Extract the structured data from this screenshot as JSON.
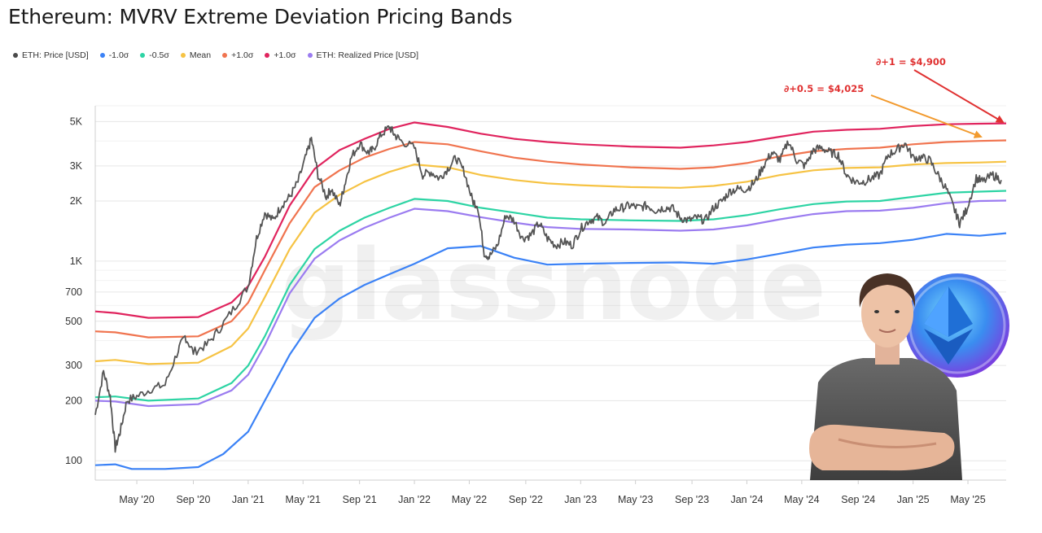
{
  "page": {
    "title": "Ethereum: MVRV Extreme Deviation Pricing Bands"
  },
  "legend": [
    {
      "label": "ETH: Price [USD]",
      "color": "#4a4a4a"
    },
    {
      "label": "-1.0σ",
      "color": "#3b82f6"
    },
    {
      "label": "-0.5σ",
      "color": "#2dd4a4"
    },
    {
      "label": "Mean",
      "color": "#f6c344"
    },
    {
      "label": "+1.0σ",
      "color": "#f0744f"
    },
    {
      "label": "+1.0σ",
      "color": "#e0245e"
    },
    {
      "label": "ETH: Realized Price [USD]",
      "color": "#9b7cf0"
    }
  ],
  "watermark": "glassnode",
  "chart_data": {
    "type": "line",
    "title": "Ethereum: MVRV Extreme Deviation Pricing Bands",
    "yscale": "log",
    "ylim": [
      80,
      6000
    ],
    "yticks": [
      {
        "value": 100,
        "label": "100"
      },
      {
        "value": 200,
        "label": "200"
      },
      {
        "value": 300,
        "label": "300"
      },
      {
        "value": 500,
        "label": "500"
      },
      {
        "value": 700,
        "label": "700"
      },
      {
        "value": 1000,
        "label": "1K"
      },
      {
        "value": 2000,
        "label": "2K"
      },
      {
        "value": 3000,
        "label": "3K"
      },
      {
        "value": 5000,
        "label": "5K"
      }
    ],
    "xlim": [
      2020.08,
      2025.56
    ],
    "xticks": [
      {
        "value": 2020.33,
        "label": "May '20"
      },
      {
        "value": 2020.67,
        "label": "Sep '20"
      },
      {
        "value": 2021.0,
        "label": "Jan '21"
      },
      {
        "value": 2021.33,
        "label": "May '21"
      },
      {
        "value": 2021.67,
        "label": "Sep '21"
      },
      {
        "value": 2022.0,
        "label": "Jan '22"
      },
      {
        "value": 2022.33,
        "label": "May '22"
      },
      {
        "value": 2022.67,
        "label": "Sep '22"
      },
      {
        "value": 2023.0,
        "label": "Jan '23"
      },
      {
        "value": 2023.33,
        "label": "May '23"
      },
      {
        "value": 2023.67,
        "label": "Sep '23"
      },
      {
        "value": 2024.0,
        "label": "Jan '24"
      },
      {
        "value": 2024.33,
        "label": "May '24"
      },
      {
        "value": 2024.67,
        "label": "Sep '24"
      },
      {
        "value": 2025.0,
        "label": "Jan '25"
      },
      {
        "value": 2025.33,
        "label": "May '25"
      }
    ],
    "series": [
      {
        "name": "+1.0σ",
        "color": "#e0245e",
        "x": [
          2020.08,
          2020.2,
          2020.4,
          2020.7,
          2020.9,
          2021.0,
          2021.1,
          2021.25,
          2021.4,
          2021.55,
          2021.7,
          2021.85,
          2022.0,
          2022.2,
          2022.4,
          2022.6,
          2022.8,
          2023.0,
          2023.3,
          2023.6,
          2023.8,
          2024.0,
          2024.2,
          2024.4,
          2024.6,
          2024.8,
          2025.0,
          2025.2,
          2025.4,
          2025.56
        ],
        "y": [
          560,
          550,
          520,
          525,
          620,
          750,
          1050,
          1900,
          2900,
          3600,
          4100,
          4600,
          4950,
          4700,
          4350,
          4100,
          3950,
          3850,
          3750,
          3700,
          3800,
          3950,
          4200,
          4450,
          4550,
          4600,
          4750,
          4850,
          4880,
          4900
        ]
      },
      {
        "name": "+1.0σ",
        "color": "#f0744f",
        "x": [
          2020.08,
          2020.2,
          2020.4,
          2020.7,
          2020.9,
          2021.0,
          2021.1,
          2021.25,
          2021.4,
          2021.55,
          2021.7,
          2021.85,
          2022.0,
          2022.2,
          2022.4,
          2022.6,
          2022.8,
          2023.0,
          2023.3,
          2023.6,
          2023.8,
          2024.0,
          2024.2,
          2024.4,
          2024.6,
          2024.8,
          2025.0,
          2025.2,
          2025.4,
          2025.56
        ],
        "y": [
          445,
          440,
          415,
          420,
          500,
          620,
          900,
          1550,
          2350,
          2850,
          3300,
          3650,
          3950,
          3850,
          3550,
          3300,
          3150,
          3050,
          2950,
          2900,
          2950,
          3100,
          3350,
          3550,
          3650,
          3700,
          3850,
          3950,
          4000,
          4025
        ]
      },
      {
        "name": "Mean",
        "color": "#f6c344",
        "x": [
          2020.08,
          2020.2,
          2020.4,
          2020.7,
          2020.9,
          2021.0,
          2021.1,
          2021.25,
          2021.4,
          2021.55,
          2021.7,
          2021.85,
          2022.0,
          2022.2,
          2022.4,
          2022.6,
          2022.8,
          2023.0,
          2023.3,
          2023.6,
          2023.8,
          2024.0,
          2024.2,
          2024.4,
          2024.6,
          2024.8,
          2025.0,
          2025.2,
          2025.4,
          2025.56
        ],
        "y": [
          315,
          320,
          305,
          310,
          375,
          460,
          660,
          1150,
          1750,
          2150,
          2500,
          2800,
          3050,
          2950,
          2700,
          2550,
          2450,
          2400,
          2350,
          2330,
          2380,
          2500,
          2700,
          2850,
          2930,
          2950,
          3050,
          3100,
          3120,
          3150
        ]
      },
      {
        "name": "-0.5σ",
        "color": "#2dd4a4",
        "x": [
          2020.08,
          2020.2,
          2020.4,
          2020.7,
          2020.9,
          2021.0,
          2021.1,
          2021.25,
          2021.4,
          2021.55,
          2021.7,
          2021.85,
          2022.0,
          2022.2,
          2022.4,
          2022.6,
          2022.8,
          2023.0,
          2023.3,
          2023.6,
          2023.8,
          2024.0,
          2024.2,
          2024.4,
          2024.6,
          2024.8,
          2025.0,
          2025.2,
          2025.4,
          2025.56
        ],
        "y": [
          208,
          210,
          200,
          205,
          245,
          300,
          420,
          760,
          1150,
          1420,
          1650,
          1850,
          2050,
          2000,
          1850,
          1750,
          1650,
          1620,
          1600,
          1590,
          1620,
          1700,
          1820,
          1930,
          1990,
          2000,
          2100,
          2200,
          2230,
          2250
        ]
      },
      {
        "name": "ETH: Realized Price [USD]",
        "color": "#9b7cf0",
        "x": [
          2020.08,
          2020.2,
          2020.4,
          2020.7,
          2020.9,
          2021.0,
          2021.1,
          2021.25,
          2021.4,
          2021.55,
          2021.7,
          2021.85,
          2022.0,
          2022.2,
          2022.4,
          2022.6,
          2022.8,
          2023.0,
          2023.3,
          2023.6,
          2023.8,
          2024.0,
          2024.2,
          2024.4,
          2024.6,
          2024.8,
          2025.0,
          2025.2,
          2025.4,
          2025.56
        ],
        "y": [
          200,
          198,
          188,
          192,
          225,
          270,
          380,
          690,
          1030,
          1270,
          1470,
          1650,
          1830,
          1780,
          1660,
          1560,
          1480,
          1450,
          1440,
          1420,
          1440,
          1510,
          1620,
          1720,
          1780,
          1790,
          1850,
          1950,
          2000,
          2010
        ]
      },
      {
        "name": "-1.0σ",
        "color": "#3b82f6",
        "x": [
          2020.08,
          2020.2,
          2020.3,
          2020.5,
          2020.7,
          2020.85,
          2021.0,
          2021.1,
          2021.25,
          2021.4,
          2021.55,
          2021.7,
          2021.85,
          2022.0,
          2022.2,
          2022.4,
          2022.6,
          2022.8,
          2023.0,
          2023.3,
          2023.6,
          2023.8,
          2024.0,
          2024.2,
          2024.4,
          2024.6,
          2024.8,
          2025.0,
          2025.2,
          2025.4,
          2025.56
        ],
        "y": [
          95,
          96,
          91,
          91,
          93,
          108,
          140,
          200,
          340,
          520,
          650,
          760,
          860,
          970,
          1160,
          1190,
          1040,
          960,
          970,
          980,
          985,
          970,
          1020,
          1090,
          1170,
          1210,
          1230,
          1280,
          1370,
          1340,
          1380
        ]
      }
    ],
    "price": {
      "name": "ETH: Price [USD]",
      "color": "#555555",
      "x": [
        2020.08,
        2020.13,
        2020.17,
        2020.2,
        2020.23,
        2020.27,
        2020.33,
        2020.42,
        2020.5,
        2020.58,
        2020.62,
        2020.67,
        2020.75,
        2020.83,
        2020.92,
        2021.0,
        2021.05,
        2021.1,
        2021.15,
        2021.2,
        2021.25,
        2021.3,
        2021.35,
        2021.38,
        2021.42,
        2021.47,
        2021.5,
        2021.55,
        2021.58,
        2021.62,
        2021.67,
        2021.72,
        2021.75,
        2021.8,
        2021.85,
        2021.88,
        2021.92,
        2022.0,
        2022.05,
        2022.1,
        2022.15,
        2022.2,
        2022.25,
        2022.3,
        2022.35,
        2022.38,
        2022.42,
        2022.45,
        2022.5,
        2022.55,
        2022.6,
        2022.65,
        2022.7,
        2022.75,
        2022.8,
        2022.85,
        2022.9,
        2022.95,
        2023.0,
        2023.05,
        2023.1,
        2023.15,
        2023.2,
        2023.25,
        2023.3,
        2023.35,
        2023.4,
        2023.45,
        2023.5,
        2023.55,
        2023.6,
        2023.65,
        2023.7,
        2023.75,
        2023.8,
        2023.85,
        2023.9,
        2023.95,
        2024.0,
        2024.05,
        2024.1,
        2024.15,
        2024.2,
        2024.25,
        2024.3,
        2024.35,
        2024.4,
        2024.45,
        2024.5,
        2024.55,
        2024.6,
        2024.65,
        2024.7,
        2024.75,
        2024.8,
        2024.85,
        2024.9,
        2024.95,
        2025.0,
        2025.05,
        2025.1,
        2025.15,
        2025.2,
        2025.25,
        2025.28,
        2025.32,
        2025.38,
        2025.42,
        2025.48,
        2025.53
      ],
      "y": [
        170,
        280,
        210,
        115,
        140,
        200,
        210,
        230,
        240,
        360,
        420,
        350,
        380,
        460,
        590,
        750,
        1300,
        1750,
        1600,
        1900,
        2100,
        2500,
        3400,
        4100,
        2700,
        2100,
        2300,
        1900,
        2400,
        3300,
        3900,
        3500,
        3600,
        4300,
        4700,
        4300,
        4000,
        3700,
        2700,
        2800,
        2600,
        2900,
        3300,
        2800,
        2000,
        1900,
        1100,
        1050,
        1200,
        1700,
        1600,
        1300,
        1350,
        1550,
        1300,
        1200,
        1250,
        1200,
        1450,
        1600,
        1650,
        1550,
        1800,
        1850,
        1900,
        1850,
        1900,
        1800,
        1850,
        1850,
        1650,
        1600,
        1650,
        1600,
        1850,
        2000,
        2250,
        2300,
        2300,
        2500,
        3000,
        3500,
        3200,
        4000,
        3200,
        3000,
        3600,
        3700,
        3500,
        3400,
        2700,
        2500,
        2500,
        2600,
        2700,
        3400,
        3600,
        3900,
        3300,
        3300,
        3200,
        2700,
        2300,
        1800,
        1550,
        1800,
        2600,
        2500,
        2700,
        2550
      ]
    },
    "annotations": [
      {
        "label": "∂+1 = $4,900",
        "color": "#e03131"
      },
      {
        "label": "∂+0.5 = $4,025",
        "color": "#e03131"
      }
    ]
  }
}
